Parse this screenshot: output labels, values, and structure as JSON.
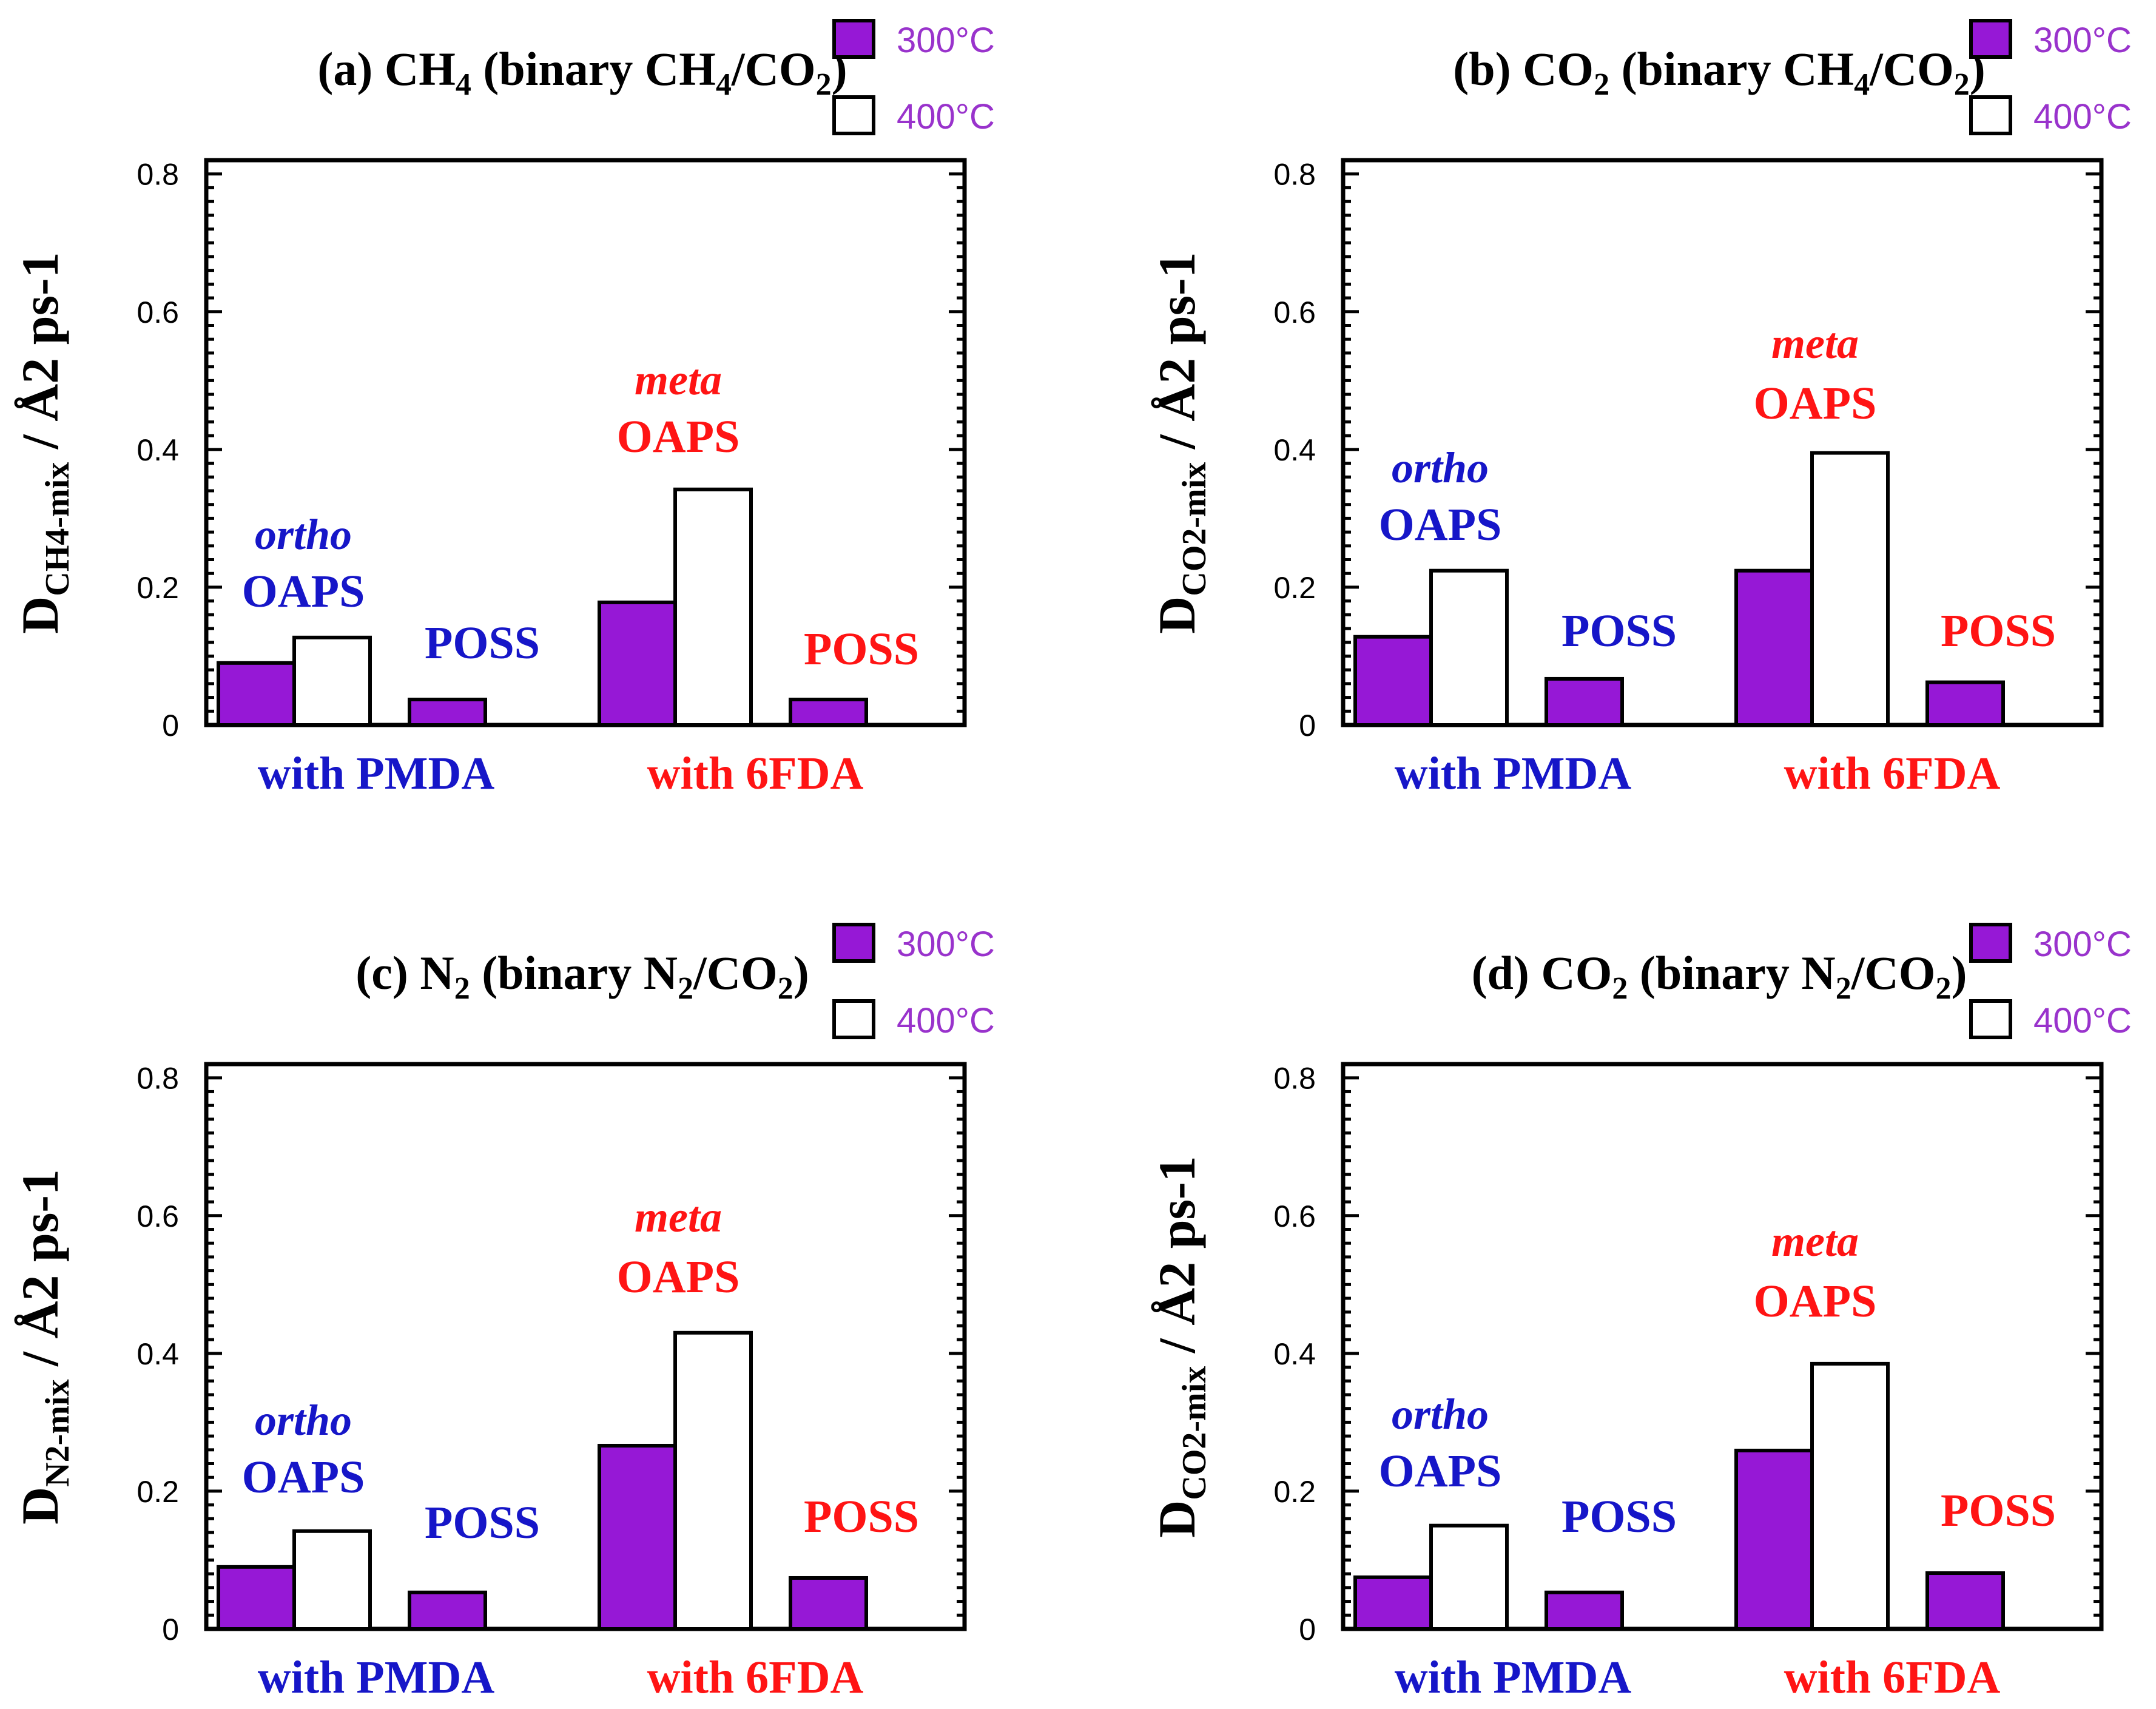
{
  "colors": {
    "bar_300": "#9618d6",
    "bar_400": "#ffffff",
    "pmda": "#1616c8",
    "fda": "#ff1414",
    "legend_text": "#9933cc",
    "axis": "#000000"
  },
  "chart_data": [
    {
      "type": "bar",
      "panel": "a",
      "title": {
        "prefix": "(a) CH",
        "s1": "4",
        "mid": " (binary CH",
        "s2": "4",
        "mid2": "/CO",
        "s3": "2",
        "suffix": ")"
      },
      "ylabel": {
        "D": "D",
        "sub": "CH4-mix",
        "unit": "  / Å2 ps-1"
      },
      "legend": [
        "300°C",
        "400°C"
      ],
      "yticks": [
        "0",
        "0.2",
        "0.4",
        "0.6",
        "0.8"
      ],
      "ylim": [
        0,
        0.82
      ],
      "xgroups": [
        "with PMDA",
        "with 6FDA"
      ],
      "categories": [
        "ortho OAPS",
        "POSS (PMDA)",
        "meta OAPS",
        "POSS (6FDA)"
      ],
      "series": [
        {
          "name": "300°C",
          "values": [
            0.09,
            0.037,
            0.178,
            0.037
          ]
        },
        {
          "name": "400°C",
          "values": [
            0.127,
            null,
            0.342,
            null
          ]
        }
      ],
      "annotations": {
        "ortho_it": "ortho",
        "ortho": "OAPS",
        "poss1": "POSS",
        "meta_it": "meta",
        "meta": "OAPS",
        "poss2": "POSS"
      }
    },
    {
      "type": "bar",
      "panel": "b",
      "title": {
        "prefix": "(b) CO",
        "s1": "2",
        "mid": " (binary CH",
        "s2": "4",
        "mid2": "/CO",
        "s3": "2",
        "suffix": ")"
      },
      "ylabel": {
        "D": "D",
        "sub": "CO2-mix",
        "unit": "  / Å2 ps-1"
      },
      "legend": [
        "300°C",
        "400°C"
      ],
      "yticks": [
        "0",
        "0.2",
        "0.4",
        "0.6",
        "0.8"
      ],
      "ylim": [
        0,
        0.82
      ],
      "xgroups": [
        "with PMDA",
        "with 6FDA"
      ],
      "categories": [
        "ortho OAPS",
        "POSS (PMDA)",
        "meta OAPS",
        "POSS (6FDA)"
      ],
      "series": [
        {
          "name": "300°C",
          "values": [
            0.128,
            0.067,
            0.224,
            0.062
          ]
        },
        {
          "name": "400°C",
          "values": [
            0.224,
            null,
            0.395,
            null
          ]
        }
      ],
      "annotations": {
        "ortho_it": "ortho",
        "ortho": "OAPS",
        "poss1": "POSS",
        "meta_it": "meta",
        "meta": "OAPS",
        "poss2": "POSS"
      }
    },
    {
      "type": "bar",
      "panel": "c",
      "title": {
        "prefix": "(c) N",
        "s1": "2",
        "mid": " (binary N",
        "s2": "2",
        "mid2": "/CO",
        "s3": "2",
        "suffix": ")"
      },
      "ylabel": {
        "D": "D",
        "sub": "N2-mix",
        "unit": "  / Å2 ps-1"
      },
      "legend": [
        "300°C",
        "400°C"
      ],
      "yticks": [
        "0",
        "0.2",
        "0.4",
        "0.6",
        "0.8"
      ],
      "ylim": [
        0,
        0.82
      ],
      "xgroups": [
        "with PMDA",
        "with 6FDA"
      ],
      "categories": [
        "ortho OAPS",
        "POSS (PMDA)",
        "meta OAPS",
        "POSS (6FDA)"
      ],
      "series": [
        {
          "name": "300°C",
          "values": [
            0.09,
            0.053,
            0.266,
            0.074
          ]
        },
        {
          "name": "400°C",
          "values": [
            0.142,
            null,
            0.43,
            null
          ]
        }
      ],
      "annotations": {
        "ortho_it": "ortho",
        "ortho": "OAPS",
        "poss1": "POSS",
        "meta_it": "meta",
        "meta": "OAPS",
        "poss2": "POSS"
      }
    },
    {
      "type": "bar",
      "panel": "d",
      "title": {
        "prefix": "(d) CO",
        "s1": "2",
        "mid": " (binary N",
        "s2": "2",
        "mid2": "/CO",
        "s3": "2",
        "suffix": ")"
      },
      "ylabel": {
        "D": "D",
        "sub": "CO2-mix",
        "unit": "  / Å2 ps-1"
      },
      "legend": [
        "300°C",
        "400°C"
      ],
      "yticks": [
        "0",
        "0.2",
        "0.4",
        "0.6",
        "0.8"
      ],
      "ylim": [
        0,
        0.82
      ],
      "xgroups": [
        "with PMDA",
        "with 6FDA"
      ],
      "categories": [
        "ortho OAPS",
        "POSS (PMDA)",
        "meta OAPS",
        "POSS (6FDA)"
      ],
      "series": [
        {
          "name": "300°C",
          "values": [
            0.075,
            0.053,
            0.259,
            0.081
          ]
        },
        {
          "name": "400°C",
          "values": [
            0.15,
            null,
            0.385,
            null
          ]
        }
      ],
      "annotations": {
        "ortho_it": "ortho",
        "ortho": "OAPS",
        "poss1": "POSS",
        "meta_it": "meta",
        "meta": "OAPS",
        "poss2": "POSS"
      }
    }
  ]
}
